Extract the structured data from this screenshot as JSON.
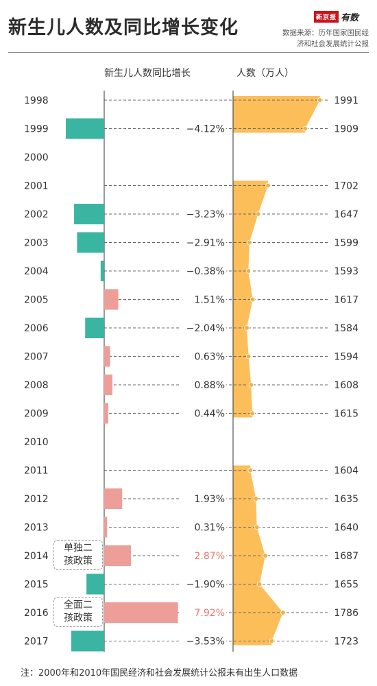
{
  "header": {
    "title": "新生儿人数及同比增长变化",
    "brand_logo": "新京报",
    "brand_sub": "有数",
    "source_line1": "数据来源：历年国家国民经",
    "source_line2": "济和社会发展统计公报"
  },
  "columns": {
    "left_header": "新生儿人数同比增长",
    "right_header": "人数（万人）"
  },
  "annotations": {
    "policy_2014": [
      "单独二",
      "孩政策"
    ],
    "policy_2016": [
      "全面二",
      "孩政策"
    ]
  },
  "footnote": "注：2000年和2010年国民经济和社会发展统计公报未有出生人口数据",
  "colors": {
    "negative": "#3ab5a1",
    "positive": "#ee9e98",
    "highlight_text": "#e8756d",
    "area": "#fcbe59",
    "dot": "#f0b050"
  },
  "chart_data": [
    {
      "type": "bar",
      "title": "新生儿人数同比增长",
      "categories": [
        "1998",
        "1999",
        "2000",
        "2001",
        "2002",
        "2003",
        "2004",
        "2005",
        "2006",
        "2007",
        "2008",
        "2009",
        "2010",
        "2011",
        "2012",
        "2013",
        "2014",
        "2015",
        "2016",
        "2017"
      ],
      "values": [
        null,
        -4.12,
        null,
        null,
        -3.23,
        -2.91,
        -0.38,
        1.51,
        -2.04,
        0.63,
        0.88,
        0.44,
        null,
        null,
        1.93,
        0.31,
        2.87,
        -1.9,
        7.92,
        -3.53
      ],
      "labels": [
        "",
        "−4.12%",
        "",
        "",
        "−3.23%",
        "−2.91%",
        "−0.38%",
        "1.51%",
        "−2.04%",
        "0.63%",
        "0.88%",
        "0.44%",
        "",
        "",
        "1.93%",
        "0.31%",
        "2.87%",
        "−1.90%",
        "7.92%",
        "−3.53%"
      ],
      "unit": "%"
    },
    {
      "type": "area",
      "title": "人数（万人）",
      "categories": [
        "1998",
        "1999",
        "2000",
        "2001",
        "2002",
        "2003",
        "2004",
        "2005",
        "2006",
        "2007",
        "2008",
        "2009",
        "2010",
        "2011",
        "2012",
        "2013",
        "2014",
        "2015",
        "2016",
        "2017"
      ],
      "values": [
        1991,
        1909,
        null,
        1702,
        1647,
        1599,
        1593,
        1617,
        1584,
        1594,
        1608,
        1615,
        null,
        1604,
        1635,
        1640,
        1687,
        1655,
        1786,
        1723
      ],
      "unit": "万人"
    }
  ]
}
